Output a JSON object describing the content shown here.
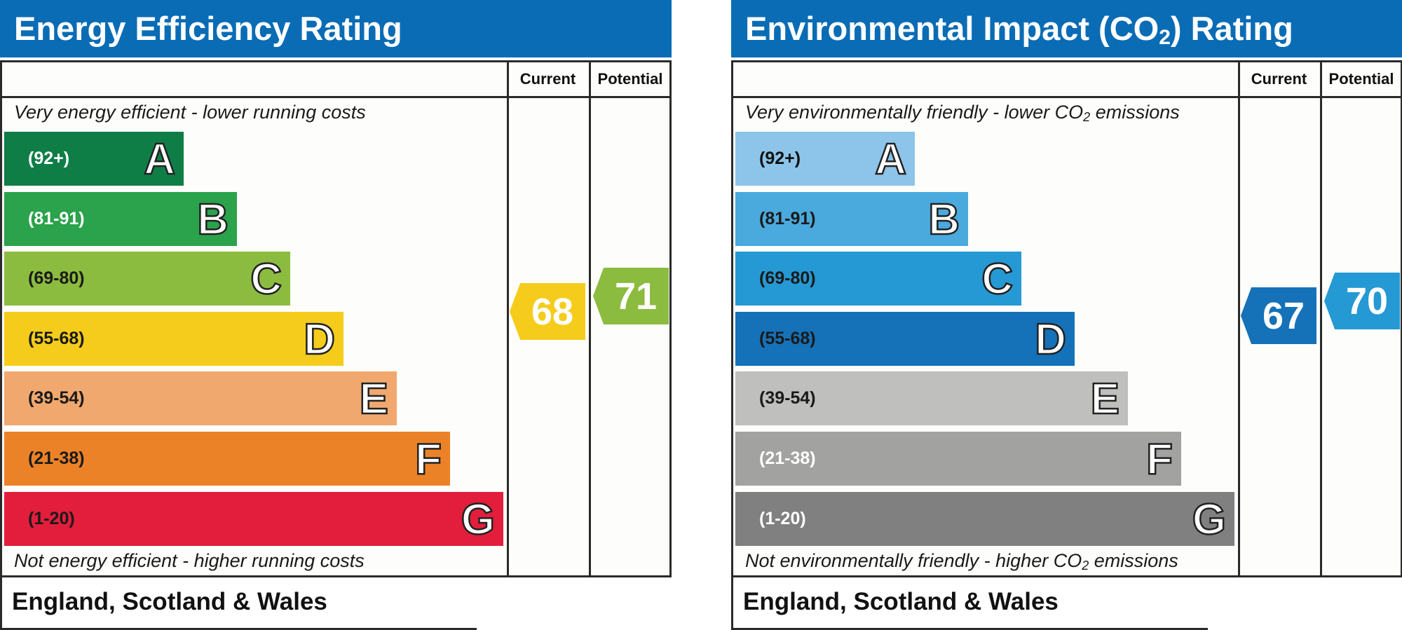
{
  "footer_text": "England, Scotland & Wales",
  "chart_data": [
    {
      "type": "bar",
      "title": "Energy Efficiency Rating",
      "columns": [
        "Current",
        "Potential"
      ],
      "top_caption": "Very energy efficient - lower running costs",
      "bottom_caption": "Not energy efficient - higher running costs",
      "bands": [
        {
          "letter": "A",
          "range": "(92+)",
          "min": 92,
          "max": 100,
          "color": "#0f7e46",
          "text_color": "#ffffff"
        },
        {
          "letter": "B",
          "range": "(81-91)",
          "min": 81,
          "max": 91,
          "color": "#2ba24c",
          "text_color": "#ffffff"
        },
        {
          "letter": "C",
          "range": "(69-80)",
          "min": 69,
          "max": 80,
          "color": "#8cbc3f",
          "text_color": "#1a1a1a"
        },
        {
          "letter": "D",
          "range": "(55-68)",
          "min": 55,
          "max": 68,
          "color": "#f5cc1b",
          "text_color": "#1a1a1a"
        },
        {
          "letter": "E",
          "range": "(39-54)",
          "min": 39,
          "max": 54,
          "color": "#f1a86e",
          "text_color": "#1a1a1a"
        },
        {
          "letter": "F",
          "range": "(21-38)",
          "min": 21,
          "max": 38,
          "color": "#ec8228",
          "text_color": "#1a1a1a"
        },
        {
          "letter": "G",
          "range": "(1-20)",
          "min": 1,
          "max": 20,
          "color": "#e21e3c",
          "text_color": "#1a1a1a"
        }
      ],
      "current": {
        "value": 68,
        "color": "#f5cc1b"
      },
      "potential": {
        "value": 71,
        "color": "#8cbc3f"
      }
    },
    {
      "type": "bar",
      "title_main": "Environmental Impact (CO",
      "title_sub": "2",
      "title_end": ") Rating",
      "columns": [
        "Current",
        "Potential"
      ],
      "top_caption_main": "Very environmentally friendly - lower CO",
      "top_caption_sub": "2",
      "top_caption_end": " emissions",
      "bottom_caption_main": "Not environmentally friendly - higher CO",
      "bottom_caption_sub": "2",
      "bottom_caption_end": " emissions",
      "bands": [
        {
          "letter": "A",
          "range": "(92+)",
          "min": 92,
          "max": 100,
          "color": "#8cc5e9",
          "text_color": "#111111"
        },
        {
          "letter": "B",
          "range": "(81-91)",
          "min": 81,
          "max": 91,
          "color": "#4aa9dd",
          "text_color": "#1a1a1a"
        },
        {
          "letter": "C",
          "range": "(69-80)",
          "min": 69,
          "max": 80,
          "color": "#2599d3",
          "text_color": "#1a1a1a"
        },
        {
          "letter": "D",
          "range": "(55-68)",
          "min": 55,
          "max": 68,
          "color": "#1571b8",
          "text_color": "#1a1a1a"
        },
        {
          "letter": "E",
          "range": "(39-54)",
          "min": 39,
          "max": 54,
          "color": "#bfbfbd",
          "text_color": "#1a1a1a"
        },
        {
          "letter": "F",
          "range": "(21-38)",
          "min": 21,
          "max": 38,
          "color": "#a2a2a1",
          "text_color": "#ffffff"
        },
        {
          "letter": "G",
          "range": "(1-20)",
          "min": 1,
          "max": 20,
          "color": "#808080",
          "text_color": "#ffffff"
        }
      ],
      "current": {
        "value": 67,
        "color": "#1571b8"
      },
      "potential": {
        "value": 70,
        "color": "#2599d3"
      }
    }
  ]
}
